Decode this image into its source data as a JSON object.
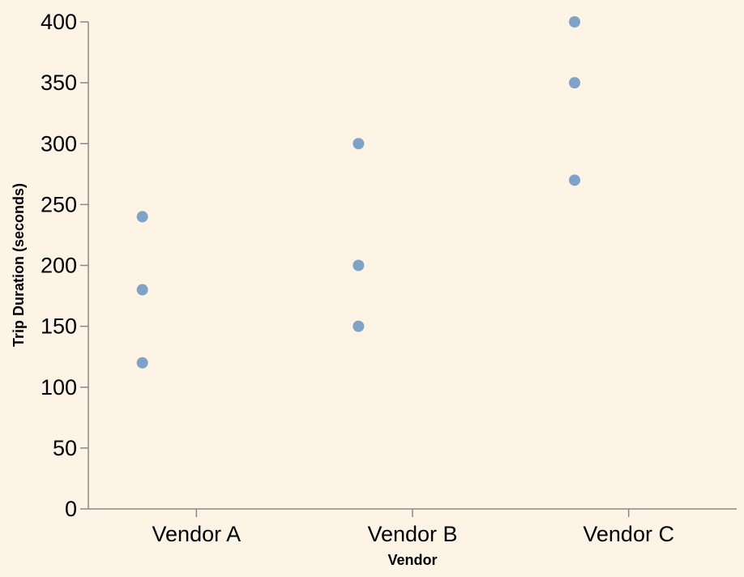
{
  "chart_data": {
    "type": "scatter",
    "xlabel": "Vendor",
    "ylabel": "Trip Duration (seconds)",
    "categories": [
      "Vendor A",
      "Vendor B",
      "Vendor C"
    ],
    "ylim": [
      0,
      400
    ],
    "yticks": [
      0,
      50,
      100,
      150,
      200,
      250,
      300,
      350,
      400
    ],
    "grid": false,
    "points": [
      {
        "x": "Vendor A",
        "y": 120
      },
      {
        "x": "Vendor A",
        "y": 180
      },
      {
        "x": "Vendor A",
        "y": 240
      },
      {
        "x": "Vendor B",
        "y": 150
      },
      {
        "x": "Vendor B",
        "y": 200
      },
      {
        "x": "Vendor B",
        "y": 300
      },
      {
        "x": "Vendor C",
        "y": 270
      },
      {
        "x": "Vendor C",
        "y": 350
      },
      {
        "x": "Vendor C",
        "y": 400
      }
    ],
    "point_color": "#7fa2c8",
    "background_color": "#fef4e6"
  }
}
